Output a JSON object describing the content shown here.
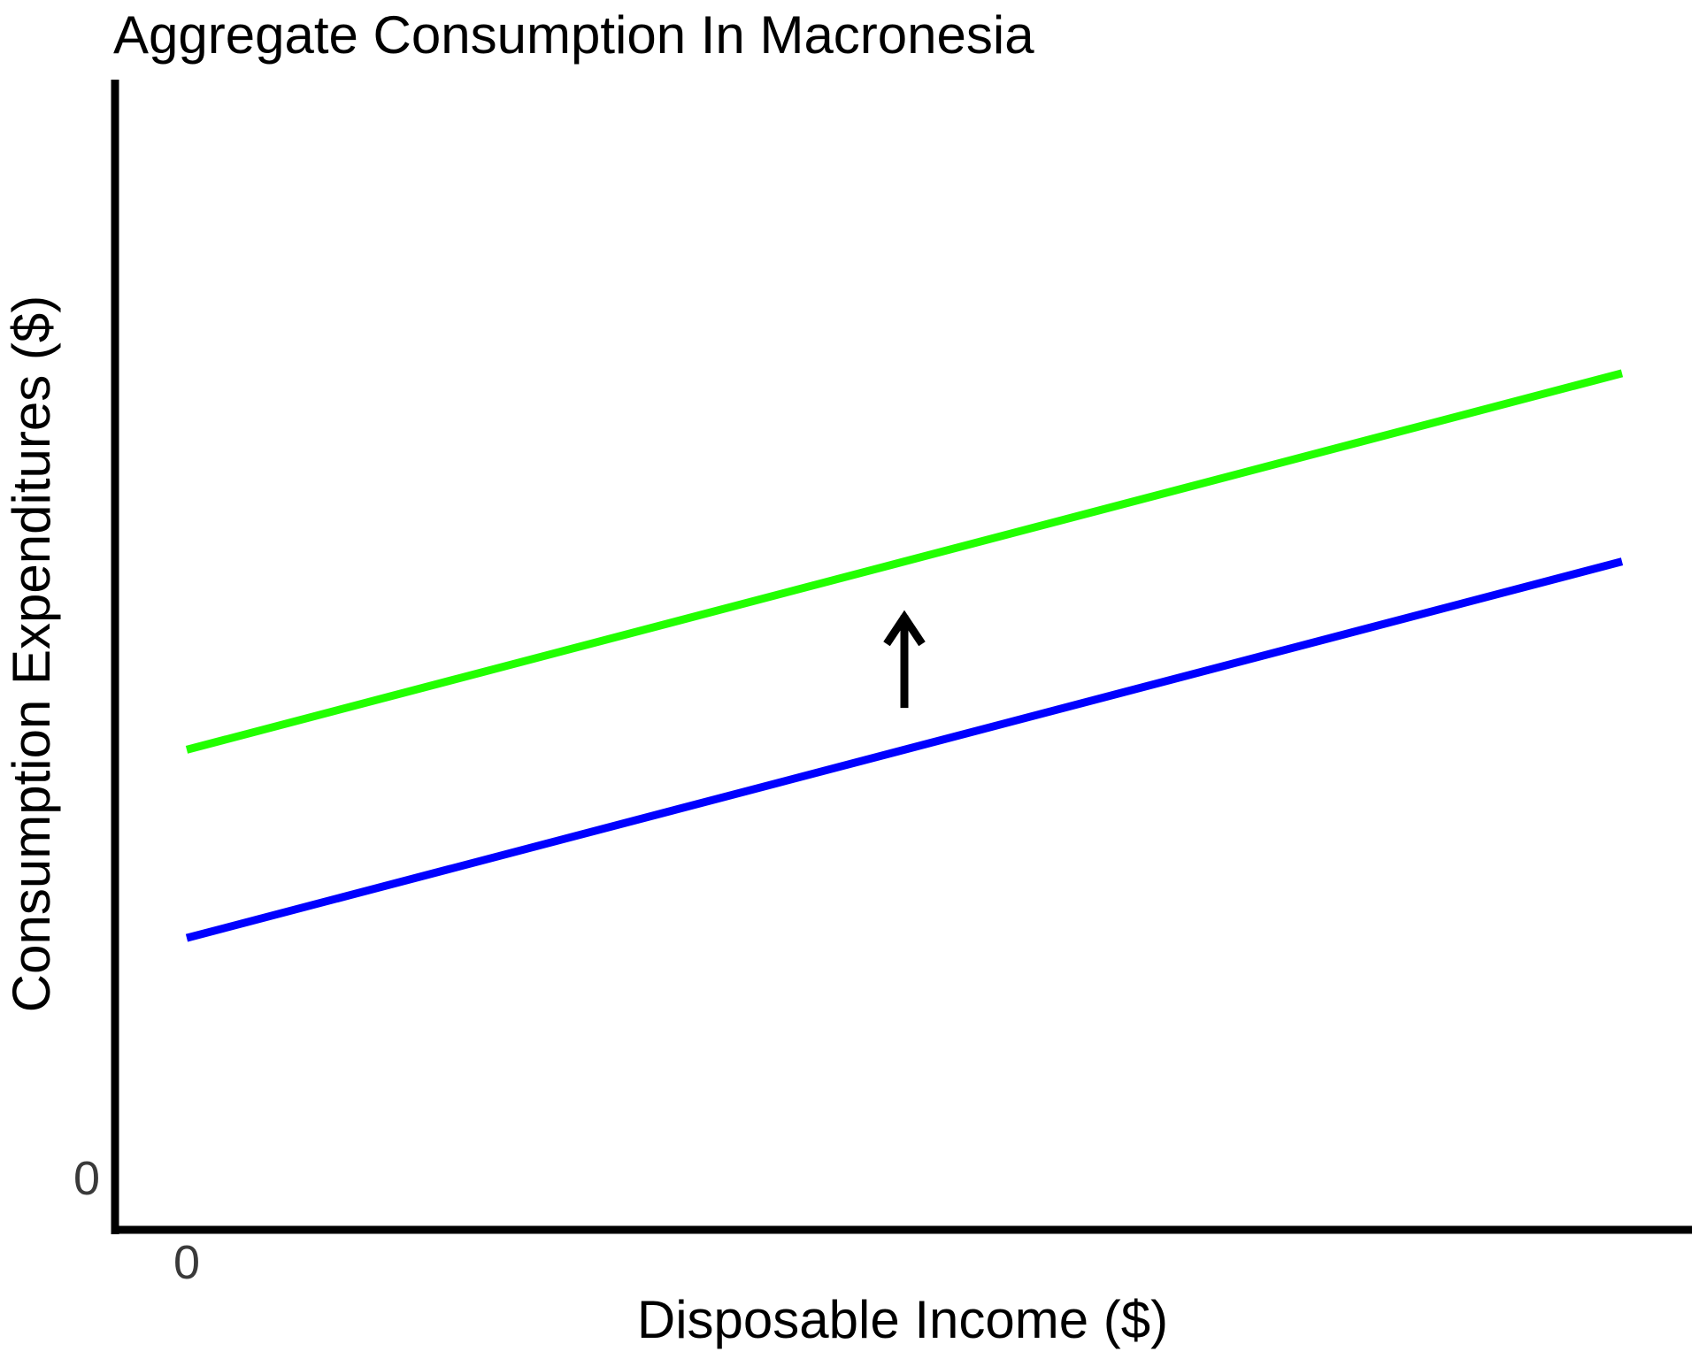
{
  "chart_data": {
    "type": "line",
    "title": "Aggregate Consumption In Macronesia",
    "xlabel": "Disposable Income ($)",
    "ylabel": "Consumption Expenditures ($)",
    "x_tick_labels": [
      "0"
    ],
    "y_tick_labels": [
      "0"
    ],
    "xlim": [
      0,
      10
    ],
    "ylim": [
      0,
      10
    ],
    "grid": false,
    "legend": "none",
    "series": [
      {
        "color": "#0000ff",
        "x": [
          0,
          10
        ],
        "y": [
          2.3,
          5.9
        ]
      },
      {
        "color": "#22ff00",
        "x": [
          0,
          10
        ],
        "y": [
          4.1,
          7.7
        ]
      }
    ],
    "annotations": [
      {
        "type": "arrow",
        "direction": "up",
        "color": "#000000",
        "x": 5,
        "y_from": 4.5,
        "y_to": 5.4
      }
    ]
  }
}
